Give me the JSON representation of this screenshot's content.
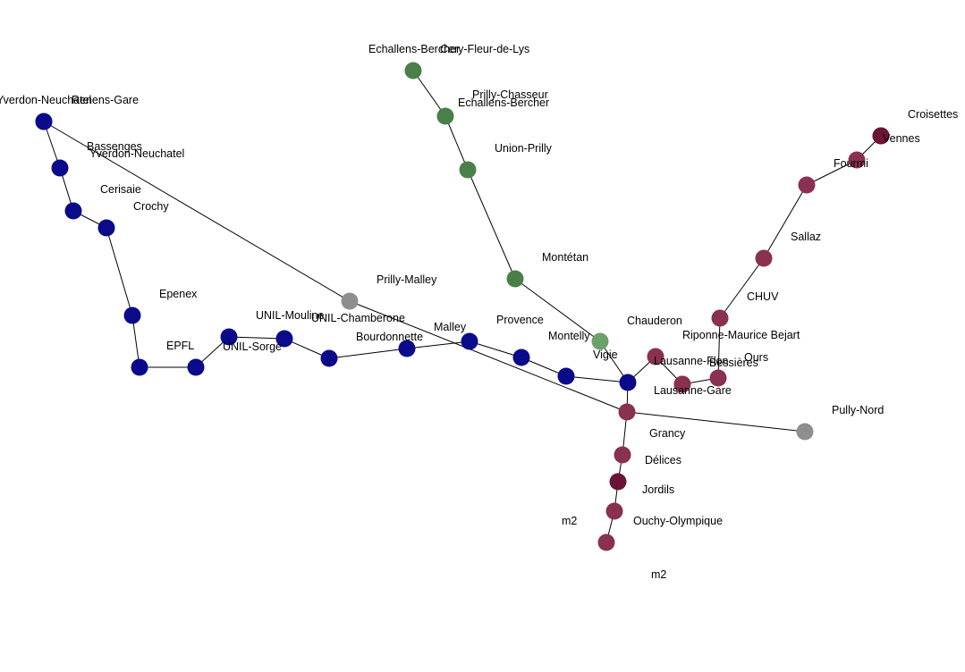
{
  "colors": {
    "blue": "#0a0a8a",
    "green": "#4a7f4a",
    "lightgreen": "#6aa26a",
    "maroon": "#8a3050",
    "darkmaroon": "#6a1535",
    "gray": "#8e8e8e"
  },
  "nodes": [
    {
      "id": "yverdon-neuchatel",
      "label": "Yverdon-Neuchatel",
      "color": "blue"
    },
    {
      "id": "renens-gare",
      "label": "Renens-Gare",
      "color": "blue"
    },
    {
      "id": "bassenges",
      "label": "Bassenges",
      "color": "blue"
    },
    {
      "id": "cerisaie",
      "label": "Cerisaie",
      "color": "blue"
    },
    {
      "id": "crochy",
      "label": "Crochy",
      "color": "blue"
    },
    {
      "id": "epenex",
      "label": "Epenex",
      "color": "blue"
    },
    {
      "id": "epfl",
      "label": "EPFL",
      "color": "blue"
    },
    {
      "id": "epfl-east",
      "label": "",
      "color": "blue"
    },
    {
      "id": "unil-sorge",
      "label": "UNIL-Sorge",
      "color": "blue"
    },
    {
      "id": "unil-mouline",
      "label": "UNIL-Mouline",
      "color": "blue"
    },
    {
      "id": "unil-chamberone",
      "label": "UNIL-Chamberone",
      "color": "blue"
    },
    {
      "id": "bourdonnette",
      "label": "Bourdonnette",
      "color": "blue"
    },
    {
      "id": "malley",
      "label": "Malley",
      "color": "blue"
    },
    {
      "id": "provence",
      "label": "Provence",
      "color": "blue"
    },
    {
      "id": "montelly",
      "label": "Montelly",
      "color": "blue"
    },
    {
      "id": "vigie",
      "label": "Vigie",
      "color": "blue"
    },
    {
      "id": "prilly-malley",
      "label": "Prilly-Malley",
      "color": "gray"
    },
    {
      "id": "pully-nord",
      "label": "Pully-Nord",
      "color": "gray"
    },
    {
      "id": "echallens-bercher-top",
      "label": "Echallens-Bercher",
      "color": "green"
    },
    {
      "id": "prilly-chasseur",
      "label": "Prilly-Chasseur",
      "color": "green"
    },
    {
      "id": "union-prilly",
      "label": "Union-Prilly",
      "color": "green"
    },
    {
      "id": "montetan",
      "label": "Montétan",
      "color": "green"
    },
    {
      "id": "chauderon-node",
      "label": "",
      "color": "lightgreen"
    },
    {
      "id": "chauderon",
      "label": "Chauderon",
      "color": "maroon"
    },
    {
      "id": "lausanne-flon",
      "label": "Lausanne-Flon",
      "color": "maroon"
    },
    {
      "id": "bessieres",
      "label": "Bessières",
      "color": "maroon"
    },
    {
      "id": "riponne",
      "label": "Riponne-Maurice Bejart",
      "color": "maroon"
    },
    {
      "id": "chuv",
      "label": "CHUV",
      "color": "maroon"
    },
    {
      "id": "sallaz",
      "label": "Sallaz",
      "color": "maroon"
    },
    {
      "id": "fourmi",
      "label": "Fourmi",
      "color": "maroon"
    },
    {
      "id": "vennes",
      "label": "Vennes",
      "color": "maroon"
    },
    {
      "id": "croisettes",
      "label": "Croisettes",
      "color": "darkmaroon"
    },
    {
      "id": "lausanne-gare",
      "label": "Lausanne-Gare",
      "color": "maroon"
    },
    {
      "id": "grancy",
      "label": "Grancy",
      "color": "maroon"
    },
    {
      "id": "delices",
      "label": "Délices",
      "color": "maroon"
    },
    {
      "id": "jordils",
      "label": "Jordils",
      "color": "darkmaroon"
    },
    {
      "id": "ouchy-olympique",
      "label": "Ouchy-Olympique",
      "color": "maroon"
    },
    {
      "id": "m2-end",
      "label": "",
      "color": "maroon"
    }
  ],
  "floating_labels": [
    {
      "id": "l-yverdon-neuchatel-2",
      "text": "Yverdon-Neuchatel"
    },
    {
      "id": "l-echallens-bercher-2",
      "text": "Echallens-Bercher"
    },
    {
      "id": "l-cery-fleur-de-lys",
      "text": "Cery-Fleur-de-Lys"
    },
    {
      "id": "l-ours",
      "text": "Ours"
    },
    {
      "id": "l-m2-a",
      "text": "m2"
    },
    {
      "id": "l-m2-b",
      "text": "m2"
    }
  ],
  "edges": [
    [
      "yverdon-neuchatel",
      "bassenges"
    ],
    [
      "bassenges",
      "cerisaie"
    ],
    [
      "cerisaie",
      "crochy"
    ],
    [
      "crochy",
      "epenex"
    ],
    [
      "epenex",
      "epfl"
    ],
    [
      "epfl",
      "epfl-east"
    ],
    [
      "epfl-east",
      "unil-sorge"
    ],
    [
      "unil-sorge",
      "unil-mouline"
    ],
    [
      "unil-mouline",
      "unil-chamberone"
    ],
    [
      "unil-chamberone",
      "bourdonnette"
    ],
    [
      "bourdonnette",
      "malley"
    ],
    [
      "malley",
      "provence"
    ],
    [
      "provence",
      "montelly"
    ],
    [
      "montelly",
      "vigie"
    ],
    [
      "yverdon-neuchatel",
      "prilly-malley"
    ],
    [
      "prilly-malley",
      "grancy"
    ],
    [
      "grancy",
      "pully-nord"
    ],
    [
      "echallens-bercher-top",
      "prilly-chasseur"
    ],
    [
      "prilly-chasseur",
      "union-prilly"
    ],
    [
      "union-prilly",
      "montetan"
    ],
    [
      "montetan",
      "chauderon-node"
    ],
    [
      "chauderon-node",
      "vigie"
    ],
    [
      "vigie",
      "chauderon"
    ],
    [
      "chauderon",
      "lausanne-flon"
    ],
    [
      "lausanne-flon",
      "bessieres"
    ],
    [
      "bessieres",
      "riponne"
    ],
    [
      "riponne",
      "chuv"
    ],
    [
      "chuv",
      "sallaz"
    ],
    [
      "sallaz",
      "fourmi"
    ],
    [
      "fourmi",
      "vennes"
    ],
    [
      "vennes",
      "croisettes"
    ],
    [
      "vigie",
      "grancy"
    ],
    [
      "grancy",
      "delices"
    ],
    [
      "delices",
      "jordils"
    ],
    [
      "jordils",
      "ouchy-olympique"
    ],
    [
      "ouchy-olympique",
      "m2-end"
    ]
  ]
}
